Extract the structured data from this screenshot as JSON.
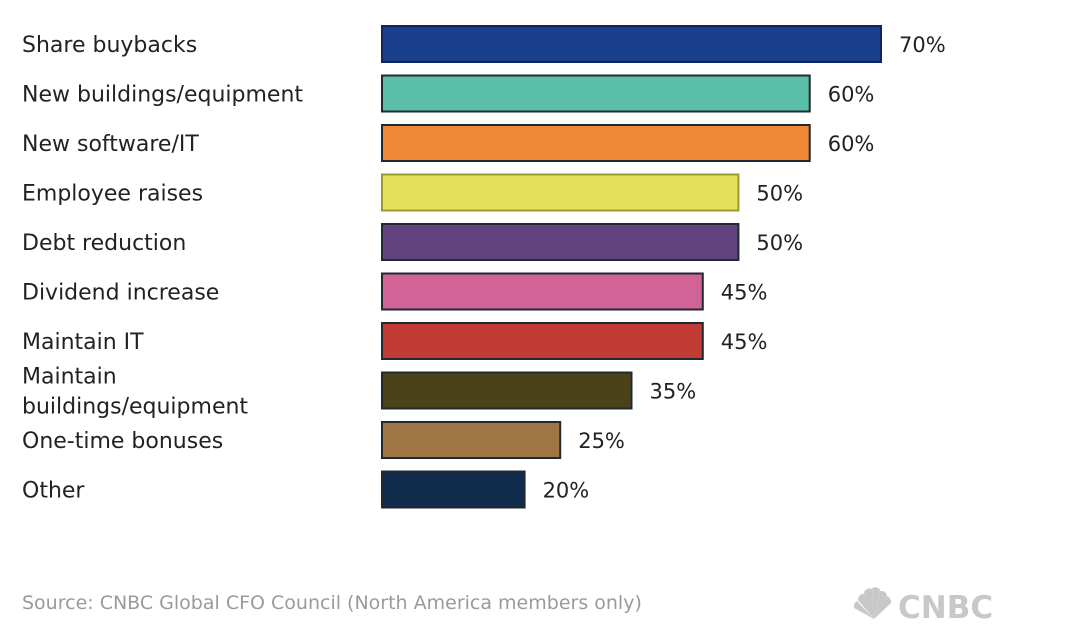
{
  "colors": {
    "bar_fills": [
      "#183e8c",
      "#5bbfa8",
      "#ee8834",
      "#e7e05a",
      "#61427f",
      "#d26396",
      "#c33b35",
      "#4a4318",
      "#a07646",
      "#112b4d"
    ],
    "bar_strokes": [
      "#0d2466",
      "#1f2a33",
      "#1f2a33",
      "#9d9a2c",
      "#1f2a33",
      "#1f2a33",
      "#1f2a33",
      "#1f2a33",
      "#1f2a33",
      "#1f2a33"
    ],
    "text": "#222222",
    "source_text": "#9a9a9a",
    "logo": "#c8c8c8"
  },
  "chart_data": {
    "type": "bar",
    "orientation": "horizontal",
    "categories": [
      "Share buybacks",
      "New buildings/equipment",
      "New software/IT",
      "Employee raises",
      "Debt reduction",
      "Dividend increase",
      "Maintain IT",
      "Maintain buildings/equipment",
      "One-time bonuses",
      "Other"
    ],
    "category_lines": [
      [
        "Share buybacks"
      ],
      [
        "New buildings/equipment"
      ],
      [
        "New software/IT"
      ],
      [
        "Employee raises"
      ],
      [
        "Debt reduction"
      ],
      [
        "Dividend increase"
      ],
      [
        "Maintain IT"
      ],
      [
        "Maintain",
        "buildings/equipment"
      ],
      [
        "One-time bonuses"
      ],
      [
        "Other"
      ]
    ],
    "values": [
      70,
      60,
      60,
      50,
      50,
      45,
      45,
      35,
      25,
      20
    ],
    "value_labels": [
      "70%",
      "60%",
      "60%",
      "50%",
      "50%",
      "45%",
      "45%",
      "35%",
      "25%",
      "20%"
    ],
    "unit": "%",
    "xlim": [
      0,
      70
    ],
    "grid": false,
    "legend": "none"
  },
  "footer": {
    "source": "Source: CNBC Global CFO Council (North America members only)",
    "logo_text": "CNBC",
    "logo_icon": "peacock-icon"
  }
}
